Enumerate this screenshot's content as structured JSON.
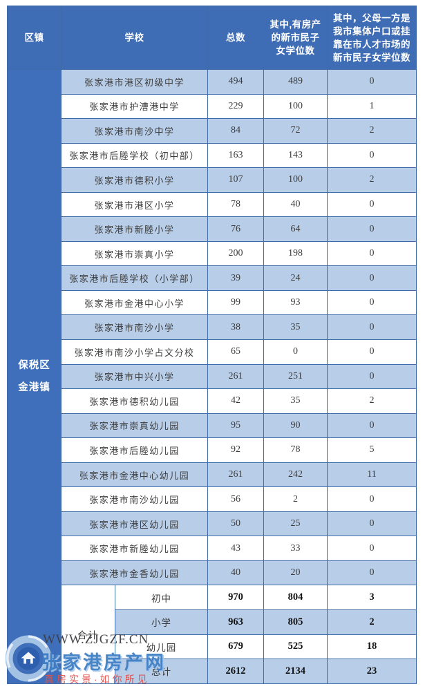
{
  "table": {
    "header": {
      "district": "区镇",
      "school": "学校",
      "total": "总数",
      "property": "其中,有房产\n的新市民子\n女学位数",
      "collective": "其中，父母一方是\n我市集体户口或挂\n靠在市人才市场的\n新市民子女学位数"
    },
    "district": "保税区\n金港镇",
    "rows": [
      {
        "school": "张家港市港区初级中学",
        "total": "494",
        "property": "489",
        "collective": "0"
      },
      {
        "school": "张家港市护漕港中学",
        "total": "229",
        "property": "100",
        "collective": "1"
      },
      {
        "school": "张家港市南沙中学",
        "total": "84",
        "property": "72",
        "collective": "2"
      },
      {
        "school": "张家港市后塍学校（初中部）",
        "total": "163",
        "property": "143",
        "collective": "0"
      },
      {
        "school": "张家港市德积小学",
        "total": "107",
        "property": "100",
        "collective": "2"
      },
      {
        "school": "张家港市港区小学",
        "total": "78",
        "property": "40",
        "collective": "0"
      },
      {
        "school": "张家港市新塍小学",
        "total": "76",
        "property": "64",
        "collective": "0"
      },
      {
        "school": "张家港市崇真小学",
        "total": "200",
        "property": "198",
        "collective": "0"
      },
      {
        "school": "张家港市后塍学校（小学部）",
        "total": "39",
        "property": "24",
        "collective": "0"
      },
      {
        "school": "张家港市金港中心小学",
        "total": "99",
        "property": "93",
        "collective": "0"
      },
      {
        "school": "张家港市南沙小学",
        "total": "38",
        "property": "35",
        "collective": "0"
      },
      {
        "school": "张家港市南沙小学占文分校",
        "total": "65",
        "property": "0",
        "collective": "0"
      },
      {
        "school": "张家港市中兴小学",
        "total": "261",
        "property": "251",
        "collective": "0"
      },
      {
        "school": "张家港市德积幼儿园",
        "total": "42",
        "property": "35",
        "collective": "2"
      },
      {
        "school": "张家港市崇真幼儿园",
        "total": "95",
        "property": "90",
        "collective": "0"
      },
      {
        "school": "张家港市后塍幼儿园",
        "total": "92",
        "property": "78",
        "collective": "5"
      },
      {
        "school": "张家港市金港中心幼儿园",
        "total": "261",
        "property": "242",
        "collective": "11"
      },
      {
        "school": "张家港市南沙幼儿园",
        "total": "56",
        "property": "2",
        "collective": "0"
      },
      {
        "school": "张家港市港区幼儿园",
        "total": "50",
        "property": "25",
        "collective": "0"
      },
      {
        "school": "张家港市新塍幼儿园",
        "total": "43",
        "property": "33",
        "collective": "0"
      },
      {
        "school": "张家港市金香幼儿园",
        "total": "40",
        "property": "20",
        "collective": "0"
      }
    ],
    "summary": {
      "label": "合计",
      "rows": [
        {
          "category": "初中",
          "total": "970",
          "property": "804",
          "collective": "3"
        },
        {
          "category": "小学",
          "total": "963",
          "property": "805",
          "collective": "2"
        },
        {
          "category": "幼儿园",
          "total": "679",
          "property": "525",
          "collective": "18"
        },
        {
          "category": "总计",
          "total": "2612",
          "property": "2134",
          "collective": "23"
        }
      ]
    }
  },
  "watermark": {
    "url": "WWW.ZJGZF.CN",
    "site_name": "张家港房产网",
    "slogan": "真房实景·如你所见",
    "logo": "house-swirl-logo"
  },
  "colors": {
    "header_blue": "#3e6db6",
    "district_blue": "#3f6fba",
    "row_light_blue": "#b8cde8",
    "border_blue": "#3f6ba8",
    "site_name_blue": "#4080c6",
    "slogan_red": "#e0514c"
  }
}
